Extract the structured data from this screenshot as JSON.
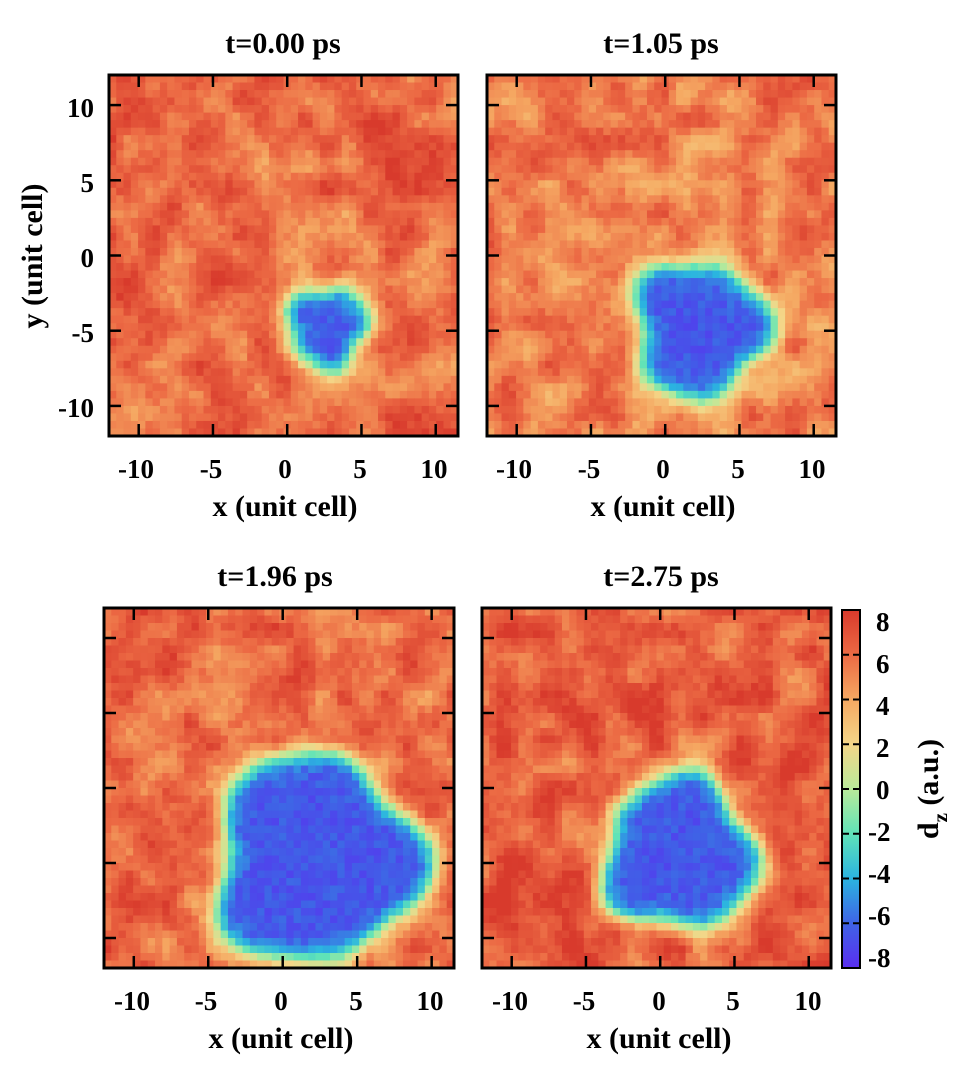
{
  "chart_data": [
    {
      "type": "heatmap",
      "title": "t=0.00 ps",
      "xlabel": "x (unit cell)",
      "ylabel": "y (unit cell)",
      "xlim": [
        -12,
        11.5
      ],
      "ylim": [
        -12,
        12
      ],
      "xticks": [
        "-10",
        "-5",
        "0",
        "5",
        "10"
      ],
      "yticks": [
        "10",
        "5",
        "0",
        "-5",
        "-10"
      ],
      "background_dz": 6,
      "domain": {
        "center_x": 2.7,
        "center_y": -4.8,
        "radius": 2.8,
        "dz": -6.5
      }
    },
    {
      "type": "heatmap",
      "title": "t=1.05 ps",
      "xlabel": "x (unit cell)",
      "ylabel": "",
      "xlim": [
        -12,
        11.5
      ],
      "ylim": [
        -12,
        12
      ],
      "xticks": [
        "-10",
        "-5",
        "0",
        "5",
        "10"
      ],
      "yticks": [],
      "background_dz": 5.5,
      "domain": {
        "center_x": 2.3,
        "center_y": -4.9,
        "radius": 4.6,
        "dz": -6.5
      }
    },
    {
      "type": "heatmap",
      "title": "t=1.96 ps",
      "xlabel": "x (unit cell)",
      "ylabel": "",
      "xlim": [
        -12,
        11.5
      ],
      "ylim": [
        -12,
        12
      ],
      "xticks": [
        "-10",
        "-5",
        "0",
        "5",
        "10"
      ],
      "yticks": [],
      "background_dz": 6,
      "domain": {
        "center_x": 2.2,
        "center_y": -4.8,
        "radius": 7.0,
        "dz": -6.5
      }
    },
    {
      "type": "heatmap",
      "title": "t=2.75 ps",
      "xlabel": "x (unit cell)",
      "ylabel": "",
      "xlim": [
        -12,
        11.5
      ],
      "ylim": [
        -12,
        12
      ],
      "xticks": [
        "-10",
        "-5",
        "0",
        "5",
        "10"
      ],
      "yticks": [],
      "background_dz": 6.5,
      "domain": {
        "center_x": 1.3,
        "center_y": -4.4,
        "radius": 5.2,
        "dz": -6.5
      }
    }
  ],
  "colorbar": {
    "label_main": "d",
    "label_sub": "z",
    "label_unit": " (a.u.)",
    "range": [
      -8,
      8
    ],
    "ticks": [
      "8",
      "6",
      "4",
      "2",
      "0",
      "-2",
      "-4",
      "-6",
      "-8"
    ],
    "stops": [
      "#5a2ef0",
      "#3f63e6",
      "#2bb4e0",
      "#5fe3b8",
      "#b9ea9a",
      "#f4d688",
      "#f5a862",
      "#ec6a44",
      "#d83a2c"
    ]
  }
}
